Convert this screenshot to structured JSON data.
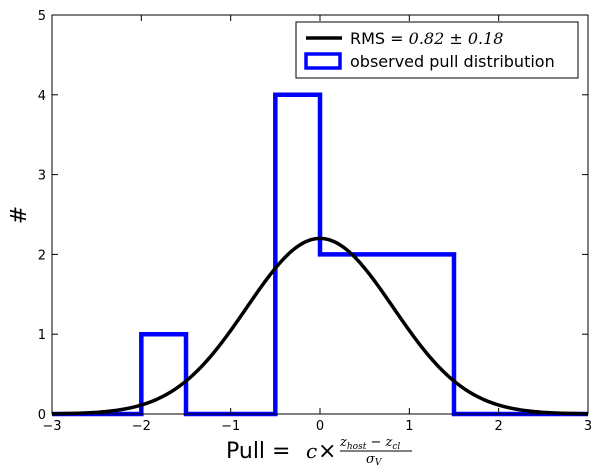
{
  "chart_data": {
    "type": "histogram",
    "xlim": [
      -3,
      3
    ],
    "ylim": [
      0,
      5
    ],
    "x_ticks": [
      -3,
      -2,
      -1,
      0,
      1,
      2,
      3
    ],
    "y_ticks": [
      0,
      1,
      2,
      3,
      4,
      5
    ],
    "x_tick_labels": [
      "−3",
      "−2",
      "−1",
      "0",
      "1",
      "2",
      "3"
    ],
    "y_tick_labels": [
      "0",
      "1",
      "2",
      "3",
      "4",
      "5"
    ],
    "xlabel": {
      "prefix": "Pull = ",
      "c": "c",
      "times": "×",
      "numerator": "z",
      "num_sub1": "host",
      "minus": " − ",
      "num_z2": "z",
      "num_sub2": "cl",
      "denominator": "σ",
      "den_sub": "V"
    },
    "ylabel": "#",
    "series": [
      {
        "name": "RMS = 0.82 ± 0.18",
        "legend_text": "RMS = ",
        "legend_math": "0.82 ± 0.18",
        "kind": "line",
        "color": "#000000",
        "gaussian": {
          "amplitude": 2.2,
          "mean": 0.0,
          "rms": 0.82
        }
      },
      {
        "name": "observed pull distribution",
        "kind": "step-histogram",
        "color": "#0000ff",
        "bins": [
          -3.0,
          -2.5,
          -2.0,
          -1.5,
          -1.0,
          -0.5,
          0.0,
          0.5,
          1.0,
          1.5,
          2.0,
          2.5,
          3.0
        ],
        "counts": [
          0,
          0,
          1,
          0,
          0,
          4,
          2,
          2,
          2,
          0,
          0,
          0
        ]
      }
    ],
    "legend_position": "top-right",
    "grid": false
  }
}
